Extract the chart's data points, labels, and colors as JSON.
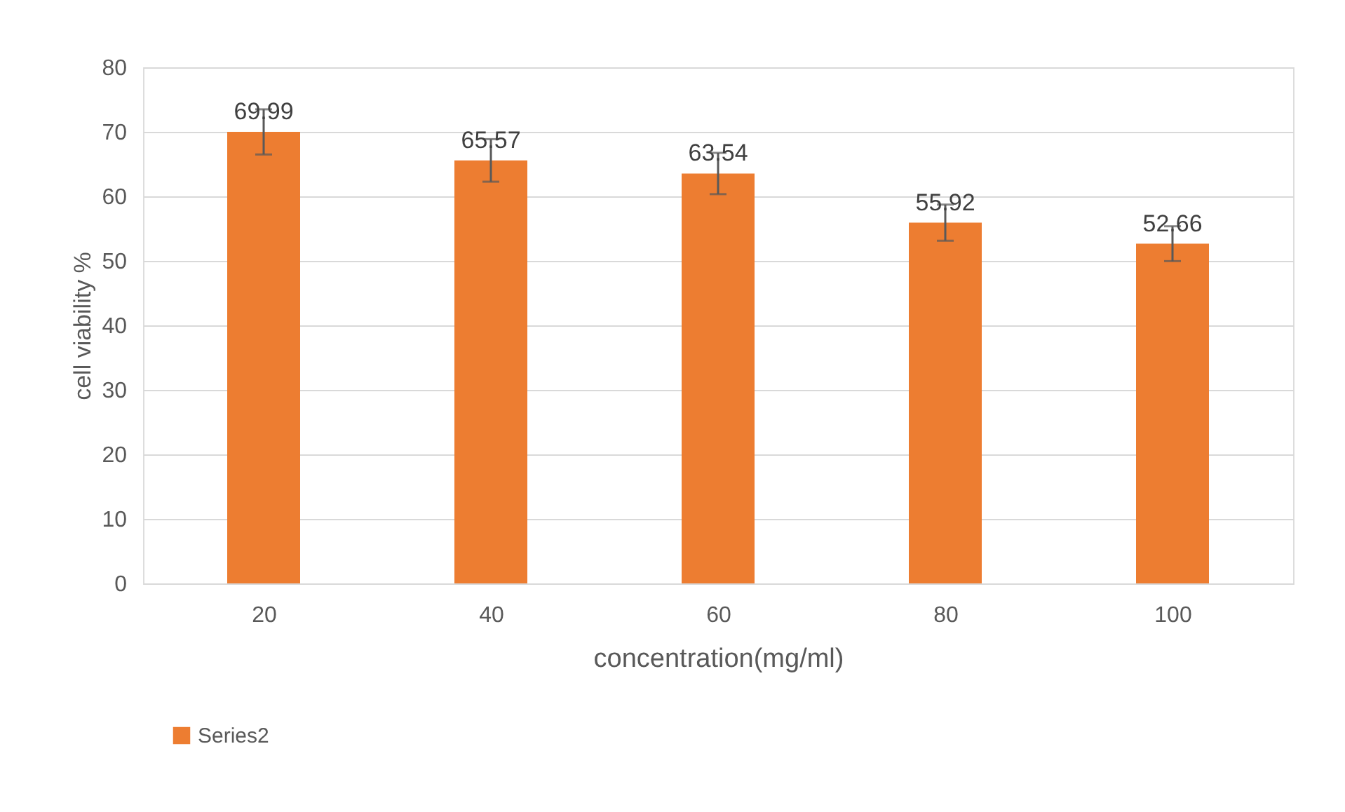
{
  "chart_data": {
    "type": "bar",
    "xlabel": "concentration(mg/ml)",
    "ylabel": "cell viability %",
    "categories": [
      "20",
      "40",
      "60",
      "80",
      "100"
    ],
    "series": [
      {
        "name": "Series2",
        "color": "#ed7d31",
        "values": [
          69.99,
          65.57,
          63.54,
          55.92,
          52.66
        ],
        "errors": [
          3.5,
          3.3,
          3.2,
          2.8,
          2.7
        ]
      }
    ],
    "ylim": [
      0,
      80
    ],
    "yticks": [
      0,
      10,
      20,
      30,
      40,
      50,
      60,
      70,
      80
    ],
    "grid": "y",
    "legend": "bottom",
    "data_labels": true
  }
}
